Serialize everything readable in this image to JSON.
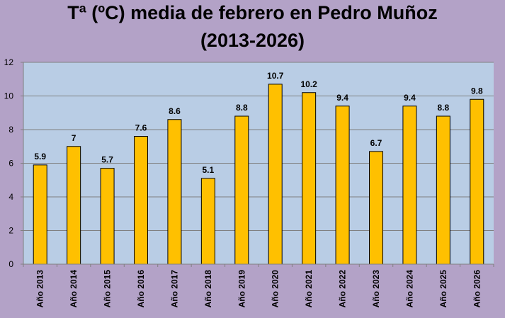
{
  "chart_data": {
    "type": "bar",
    "title_line1": "Tª (ºC) media de febrero en Pedro Muñoz",
    "title_line2": "(2013-2026)",
    "categories": [
      "Año 2013",
      "Año 2014",
      "Año 2015",
      "Año 2016",
      "Año 2017",
      "Año 2018",
      "Año 2019",
      "Año 2020",
      "Año 2021",
      "Año 2022",
      "Año 2023",
      "Año 2024",
      "Año 2025",
      "Año 2026"
    ],
    "values": [
      5.9,
      7,
      5.7,
      7.6,
      8.6,
      5.1,
      8.8,
      10.7,
      10.2,
      9.4,
      6.7,
      9.4,
      8.8,
      9.8
    ],
    "value_labels": [
      "5.9",
      "7",
      "5.7",
      "7.6",
      "8.6",
      "5.1",
      "8.8",
      "10.7",
      "10.2",
      "9.4",
      "6.7",
      "9.4",
      "8.8",
      "9.8"
    ],
    "ylim": [
      0,
      12
    ],
    "yticks": [
      0,
      2,
      4,
      6,
      8,
      10,
      12
    ],
    "grid": true,
    "legend": "none",
    "colors": {
      "background": "#b3a2c7",
      "plot_area": "#b9cde5",
      "bar_fill": "#ffc000",
      "bar_stroke": "#000000",
      "grid": "#808080"
    }
  }
}
